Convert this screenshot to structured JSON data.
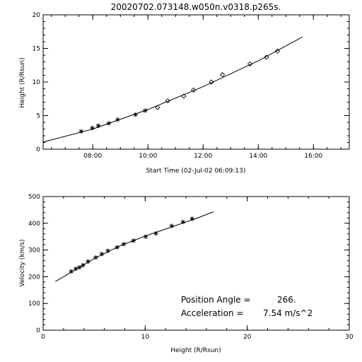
{
  "colors": {
    "background": "#ffffff",
    "ink": "#000000"
  },
  "chart_data": [
    {
      "type": "scatter",
      "title": "20020702.073148.w050n.v0318.p265s.",
      "xlabel": "Start Time (02-Jul-02 06:09:13)",
      "ylabel": "Height (R/Rsun)",
      "xlim": [
        6.2,
        17.3
      ],
      "ylim": [
        0,
        20
      ],
      "xticks": [
        {
          "v": 8,
          "label": "08:00"
        },
        {
          "v": 10,
          "label": "10:00"
        },
        {
          "v": 12,
          "label": "12:00"
        },
        {
          "v": 14,
          "label": "14:00"
        },
        {
          "v": 16,
          "label": "16:00"
        }
      ],
      "yticks": [
        0,
        5,
        10,
        15,
        20
      ],
      "series": [
        {
          "marker": "asterisk",
          "points": [
            {
              "x": 7.58,
              "y": 2.65
            },
            {
              "x": 7.98,
              "y": 3.15
            },
            {
              "x": 8.2,
              "y": 3.5
            },
            {
              "x": 8.58,
              "y": 3.85
            },
            {
              "x": 8.9,
              "y": 4.4
            },
            {
              "x": 9.55,
              "y": 5.15
            },
            {
              "x": 9.9,
              "y": 5.75
            }
          ]
        },
        {
          "marker": "diamond",
          "points": [
            {
              "x": 10.35,
              "y": 6.2
            },
            {
              "x": 10.72,
              "y": 7.2
            },
            {
              "x": 11.3,
              "y": 7.9
            },
            {
              "x": 11.65,
              "y": 8.8
            },
            {
              "x": 12.3,
              "y": 10.0
            },
            {
              "x": 12.7,
              "y": 11.1
            },
            {
              "x": 13.7,
              "y": 12.7
            },
            {
              "x": 14.3,
              "y": 13.7
            },
            {
              "x": 14.7,
              "y": 14.6
            }
          ]
        }
      ],
      "fit": [
        {
          "x": 6.2,
          "y": 1.05
        },
        {
          "x": 8.0,
          "y": 3.0
        },
        {
          "x": 10.0,
          "y": 5.9
        },
        {
          "x": 12.0,
          "y": 9.3
        },
        {
          "x": 14.0,
          "y": 13.15
        },
        {
          "x": 15.6,
          "y": 16.7
        }
      ]
    },
    {
      "type": "scatter",
      "title": "",
      "xlabel": "Height (R/Rsun)",
      "ylabel": "Velocity (km/s)",
      "xlim": [
        0,
        30
      ],
      "ylim": [
        0,
        500
      ],
      "xticks": [
        {
          "v": 0,
          "label": "0"
        },
        {
          "v": 10,
          "label": "10"
        },
        {
          "v": 20,
          "label": "20"
        },
        {
          "v": 30,
          "label": "30"
        }
      ],
      "yticks": [
        0,
        100,
        200,
        300,
        400,
        500
      ],
      "series": [
        {
          "marker": "asterisk",
          "points": [
            {
              "x": 2.75,
              "y": 220
            },
            {
              "x": 3.2,
              "y": 230
            },
            {
              "x": 3.55,
              "y": 235
            },
            {
              "x": 3.9,
              "y": 243
            },
            {
              "x": 4.4,
              "y": 257
            },
            {
              "x": 5.15,
              "y": 272
            },
            {
              "x": 5.75,
              "y": 285
            },
            {
              "x": 6.35,
              "y": 297
            },
            {
              "x": 7.25,
              "y": 310
            },
            {
              "x": 7.9,
              "y": 322
            },
            {
              "x": 8.85,
              "y": 335
            },
            {
              "x": 10.05,
              "y": 350
            },
            {
              "x": 11.05,
              "y": 362
            },
            {
              "x": 12.6,
              "y": 390
            },
            {
              "x": 13.7,
              "y": 405
            },
            {
              "x": 14.6,
              "y": 417
            }
          ]
        }
      ],
      "fit": [
        {
          "x": 1.2,
          "y": 182
        },
        {
          "x": 2.0,
          "y": 200
        },
        {
          "x": 3.0,
          "y": 222
        },
        {
          "x": 5.0,
          "y": 268
        },
        {
          "x": 7.5,
          "y": 315
        },
        {
          "x": 10.0,
          "y": 352
        },
        {
          "x": 12.5,
          "y": 385
        },
        {
          "x": 15.0,
          "y": 418
        },
        {
          "x": 16.7,
          "y": 443
        }
      ],
      "annotations": {
        "position_angle_label": "Position Angle =",
        "position_angle_value": "266.",
        "acceleration_label": "Acceleration =",
        "acceleration_value": "7.54 m/s^2"
      }
    }
  ]
}
